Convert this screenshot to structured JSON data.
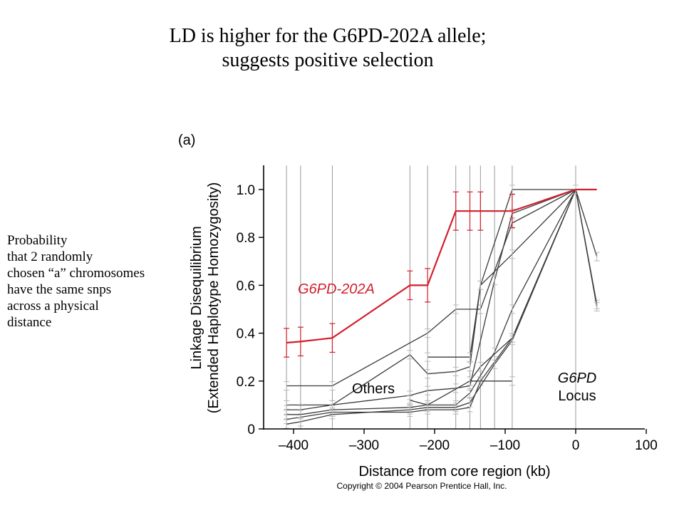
{
  "slide": {
    "title_lines": [
      "LD is higher for the G6PD-202A allele;",
      "suggests positive selection"
    ],
    "note_lines": [
      "Probability",
      "that 2 randomly",
      "chosen “a” chromosomes",
      "have the same snps",
      "across a physical",
      "distance"
    ]
  },
  "chart_data": {
    "type": "line",
    "panel_label": "(a)",
    "xlabel": "Distance from core region (kb)",
    "ylabel_lines": [
      "Linkage Disequilibrium",
      "(Extended Haplotype Homozygosity)"
    ],
    "x_ticks": [
      -400,
      -300,
      -200,
      -100,
      0,
      100
    ],
    "x_tick_labels": [
      "–400",
      "–300",
      "–200",
      "–100",
      "0",
      "100"
    ],
    "y_ticks": [
      0,
      0.2,
      0.4,
      0.6,
      0.8,
      1.0
    ],
    "y_tick_labels": [
      "0",
      "0.2",
      "0.4",
      "0.6",
      "0.8",
      "1.0"
    ],
    "xlim": [
      -430,
      100
    ],
    "ylim": [
      0,
      1.1
    ],
    "grid_x": [
      -410,
      -390,
      -345,
      -235,
      -210,
      -170,
      -150,
      -135,
      -115,
      -90,
      0
    ],
    "annotations": {
      "g6pd_202a": "G6PD-202A",
      "others": "Others",
      "locus_lines": [
        "G6PD",
        "Locus"
      ],
      "copyright": "Copyright © 2004 Pearson Prentice Hall, Inc."
    },
    "colors": {
      "g6pd_202a": "#d0202c",
      "others": "#3a3a3a",
      "axis": "#000000",
      "grid": "#9a9a9a",
      "errorbar": "#b8b8b8"
    },
    "series": [
      {
        "name": "G6PD-202A",
        "x": [
          -410,
          -390,
          -345,
          -235,
          -210,
          -170,
          -150,
          -135,
          -90,
          0,
          30
        ],
        "y": [
          0.36,
          0.365,
          0.38,
          0.6,
          0.6,
          0.91,
          0.91,
          0.91,
          0.91,
          1.0,
          1.0
        ],
        "err": [
          0.06,
          0.06,
          0.06,
          0.06,
          0.07,
          0.08,
          0.08,
          0.08,
          0.07,
          0,
          0
        ]
      },
      {
        "x": [
          -410,
          -345,
          -210,
          -170,
          -135,
          -90,
          0,
          30
        ],
        "y": [
          0.18,
          0.18,
          0.4,
          0.5,
          0.5,
          0.86,
          1.0,
          0.72
        ]
      },
      {
        "x": [
          -410,
          -345,
          -235,
          -210,
          -170,
          -150,
          -135,
          -90,
          0,
          30
        ],
        "y": [
          0.1,
          0.1,
          0.31,
          0.23,
          0.24,
          0.26,
          0.6,
          0.73,
          1.0,
          0.52
        ]
      },
      {
        "x": [
          -410,
          -390,
          -345,
          -235,
          -210,
          -170,
          -150,
          -115,
          -90,
          0
        ],
        "y": [
          0.08,
          0.08,
          0.1,
          0.14,
          0.16,
          0.17,
          0.18,
          0.62,
          0.9,
          1.0
        ]
      },
      {
        "x": [
          -410,
          -390,
          -345,
          -235,
          -210,
          -170,
          -150,
          -115,
          -90,
          0,
          30
        ],
        "y": [
          0.06,
          0.06,
          0.08,
          0.09,
          0.1,
          0.1,
          0.15,
          0.32,
          0.5,
          1.0,
          0.51
        ]
      },
      {
        "x": [
          -410,
          -345,
          -235,
          -210,
          -170,
          -150,
          -135,
          -90,
          0
        ],
        "y": [
          0.04,
          0.07,
          0.07,
          0.08,
          0.08,
          0.09,
          0.2,
          0.38,
          1.0
        ]
      },
      {
        "x": [
          -410,
          -390,
          -345,
          -235,
          -210,
          -170,
          -150,
          -115,
          -90,
          0
        ],
        "y": [
          0.02,
          0.03,
          0.06,
          0.08,
          0.09,
          0.09,
          0.11,
          0.27,
          0.37,
          1.0
        ]
      },
      {
        "x": [
          -235,
          -210,
          -150,
          -135,
          -90
        ],
        "y": [
          0.12,
          0.1,
          0.2,
          0.26,
          0.38
        ]
      },
      {
        "x": [
          -210,
          -150,
          -135,
          -90,
          0
        ],
        "y": [
          0.3,
          0.3,
          0.6,
          1.0,
          1.0
        ]
      },
      {
        "x": [
          -150,
          -90
        ],
        "y": [
          0.2,
          0.2
        ]
      }
    ]
  }
}
